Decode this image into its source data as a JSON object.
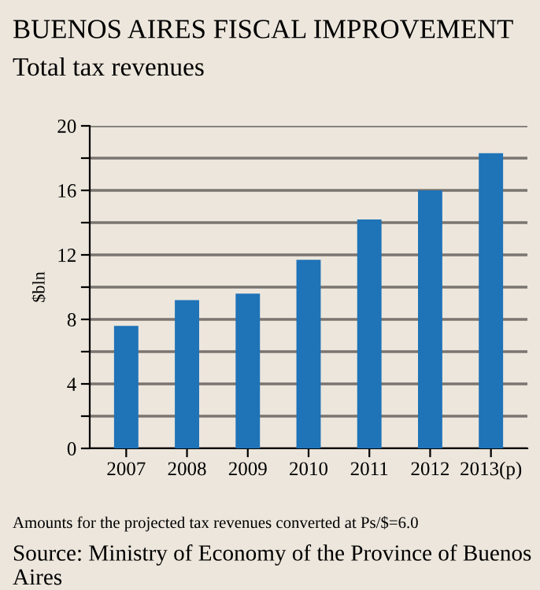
{
  "chart_data": {
    "type": "bar",
    "title": "BUENOS AIRES FISCAL IMPROVEMENT",
    "subtitle": "Total tax revenues",
    "ylabel": "$bln",
    "categories": [
      "2007",
      "2008",
      "2009",
      "2010",
      "2011",
      "2012",
      "2013(p)"
    ],
    "values": [
      7.6,
      9.2,
      9.6,
      11.7,
      14.2,
      16.0,
      18.3
    ],
    "color": "#1f73b7",
    "ylim": [
      0,
      20
    ],
    "yticks": [
      0,
      {
        "value": 2,
        "label": null
      },
      4,
      {
        "value": 6,
        "label": null
      },
      8,
      {
        "value": 10,
        "label": null
      },
      12,
      {
        "value": 14,
        "label": null
      },
      16,
      {
        "value": 18,
        "label": null
      },
      20
    ],
    "grid": "y",
    "annotations": [
      "Amounts for the projected tax revenues converted at Ps/$=6.0",
      "Source: Ministry of Economy of the Province of Buenos Aires"
    ]
  }
}
